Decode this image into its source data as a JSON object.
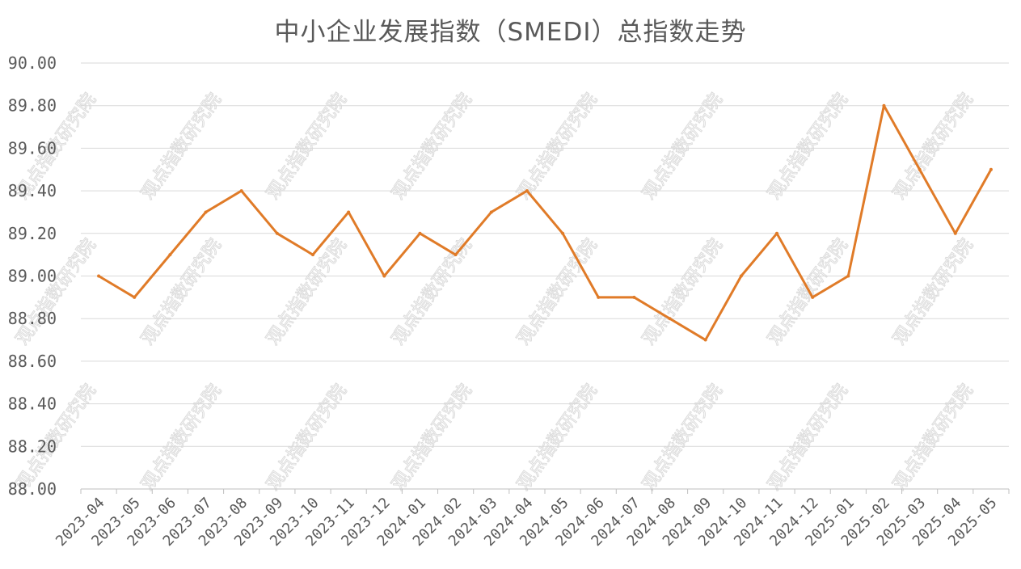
{
  "chart_data": {
    "type": "line",
    "title": "中小企业发展指数（SMEDI）总指数走势",
    "xlabel": "",
    "ylabel": "",
    "ylim": [
      88.0,
      90.0
    ],
    "ytick_labels": [
      "90.00",
      "89.80",
      "89.60",
      "89.40",
      "89.20",
      "89.00",
      "88.80",
      "88.60",
      "88.40",
      "88.20",
      "88.00"
    ],
    "categories": [
      "2023-04",
      "2023-05",
      "2023-06",
      "2023-07",
      "2023-08",
      "2023-09",
      "2023-10",
      "2023-11",
      "2023-12",
      "2024-01",
      "2024-02",
      "2024-03",
      "2024-04",
      "2024-05",
      "2024-06",
      "2024-07",
      "2024-08",
      "2024-09",
      "2024-10",
      "2024-11",
      "2024-12",
      "2025-01",
      "2025-02",
      "2025-03",
      "2025-04",
      "2025-05"
    ],
    "series": [
      {
        "values": [
          89.0,
          88.9,
          89.1,
          89.3,
          89.4,
          89.2,
          89.1,
          89.3,
          89.0,
          89.2,
          89.1,
          89.3,
          89.4,
          89.2,
          88.9,
          88.9,
          88.8,
          88.7,
          89.0,
          89.2,
          88.9,
          89.0,
          89.8,
          89.5,
          89.2,
          89.5
        ],
        "color": "#E07B28"
      }
    ],
    "grid": true,
    "legend": "none",
    "watermark": "观点指数研究院"
  }
}
